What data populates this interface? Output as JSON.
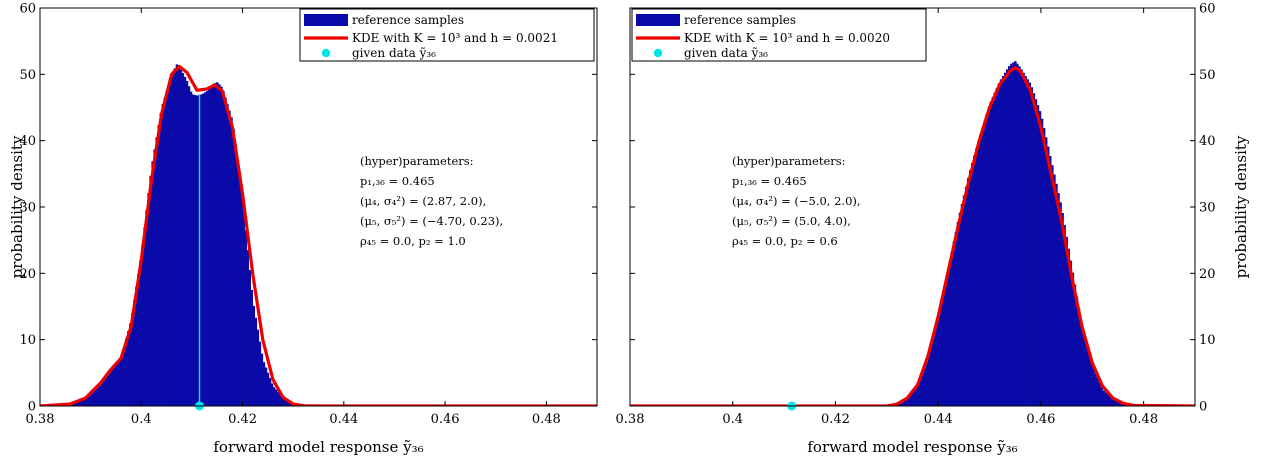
{
  "chart_data": [
    {
      "type": "histogram",
      "xlabel": "forward model response ỹ₃₆",
      "ylabel": "probability density",
      "xlim": [
        0.38,
        0.49
      ],
      "ylim": [
        0,
        60
      ],
      "xticks": [
        "0.38",
        "0.4",
        "0.42",
        "0.44",
        "0.46",
        "0.48"
      ],
      "yticks": [
        "0",
        "10",
        "20",
        "30",
        "40",
        "50",
        "60"
      ],
      "ylabel_side": "left",
      "legend_position": "top-right",
      "legend": [
        "reference samples",
        "KDE with K = 10³ and h = 0.0021",
        "given data ỹ₃₆"
      ],
      "annotation": [
        "(hyper)parameters:",
        "p₁,₃₆ = 0.465",
        "(μ₄, σ₄²) = (2.87, 2.0),",
        "(μ₅, σ₅²) = (−4.70, 0.23),",
        "ρ₄₅ = 0.0,  p₂ = 1.0"
      ],
      "given_data_x": 0.4115,
      "given_data_line_to": 47,
      "kde": {
        "name": "KDE with K = 10³ and h = 0.0021",
        "x": [
          0.38,
          0.386,
          0.389,
          0.392,
          0.394,
          0.396,
          0.398,
          0.4,
          0.402,
          0.404,
          0.406,
          0.4075,
          0.409,
          0.411,
          0.413,
          0.4145,
          0.416,
          0.418,
          0.42,
          0.422,
          0.424,
          0.426,
          0.428,
          0.43,
          0.432,
          0.436,
          0.44,
          0.49
        ],
        "y": [
          0,
          0.3,
          1.2,
          3.5,
          5.5,
          7.2,
          12,
          22,
          34,
          44,
          50,
          51.2,
          50.3,
          47.6,
          47.8,
          48.4,
          47.5,
          42,
          32,
          20,
          10,
          4,
          1.3,
          0.3,
          0.05,
          0,
          0,
          0
        ]
      },
      "hist": {
        "name": "reference samples",
        "x": [
          0.38,
          0.386,
          0.389,
          0.392,
          0.394,
          0.396,
          0.398,
          0.4,
          0.402,
          0.404,
          0.406,
          0.407,
          0.408,
          0.409,
          0.41,
          0.411,
          0.412,
          0.413,
          0.414,
          0.415,
          0.416,
          0.418,
          0.42,
          0.422,
          0.424,
          0.426,
          0.428,
          0.43,
          0.432,
          0.436
        ],
        "y": [
          0,
          0.2,
          1.0,
          3.2,
          5.2,
          7.3,
          13,
          23,
          36,
          45,
          50,
          51.5,
          50.5,
          49,
          47,
          46.8,
          47,
          47.5,
          48.5,
          48.8,
          48,
          43,
          31,
          16,
          7,
          3,
          1.3,
          0.4,
          0.1,
          0
        ]
      }
    },
    {
      "type": "histogram",
      "xlabel": "forward model response ỹ₃₆",
      "ylabel": "probability density",
      "xlim": [
        0.38,
        0.49
      ],
      "ylim": [
        0,
        60
      ],
      "xticks": [
        "0.38",
        "0.4",
        "0.42",
        "0.44",
        "0.46",
        "0.48"
      ],
      "yticks": [
        "0",
        "10",
        "20",
        "30",
        "40",
        "50",
        "60"
      ],
      "ylabel_side": "right",
      "legend_position": "top-left",
      "legend": [
        "reference samples",
        "KDE with K = 10³ and h = 0.0020",
        "given data ỹ₃₆"
      ],
      "annotation": [
        "(hyper)parameters:",
        "p₁,₃₆ = 0.465",
        "(μ₄, σ₄²) = (−5.0, 2.0),",
        "(μ₅, σ₅²) = (5.0, 4.0),",
        "ρ₄₅ = 0.0,  p₂ = 0.6"
      ],
      "given_data_x": 0.4115,
      "given_data_line_to": 0,
      "kde": {
        "name": "KDE with K = 10³ and h = 0.0020",
        "x": [
          0.38,
          0.43,
          0.432,
          0.434,
          0.436,
          0.438,
          0.44,
          0.442,
          0.444,
          0.446,
          0.448,
          0.45,
          0.452,
          0.454,
          0.455,
          0.456,
          0.458,
          0.46,
          0.462,
          0.464,
          0.466,
          0.468,
          0.47,
          0.472,
          0.474,
          0.476,
          0.478,
          0.49
        ],
        "y": [
          0,
          0,
          0.3,
          1.2,
          3.2,
          7.5,
          13.5,
          20.5,
          27.5,
          34,
          40,
          45,
          48.5,
          50.5,
          51,
          50.5,
          47.5,
          42,
          35,
          28,
          19.5,
          12,
          6.5,
          3,
          1.2,
          0.4,
          0.1,
          0
        ]
      },
      "hist": {
        "name": "reference samples",
        "x": [
          0.43,
          0.432,
          0.434,
          0.436,
          0.438,
          0.44,
          0.442,
          0.444,
          0.446,
          0.448,
          0.45,
          0.452,
          0.454,
          0.455,
          0.456,
          0.458,
          0.46,
          0.462,
          0.464,
          0.466,
          0.468,
          0.47,
          0.472,
          0.474,
          0.476,
          0.478
        ],
        "y": [
          0,
          0.3,
          1.1,
          3.0,
          7.0,
          13,
          21,
          28.5,
          35,
          40.5,
          45.5,
          49,
          51.5,
          52,
          51,
          48.5,
          44,
          37,
          30,
          21,
          12,
          6,
          2.5,
          1,
          0.3,
          0
        ]
      }
    }
  ]
}
